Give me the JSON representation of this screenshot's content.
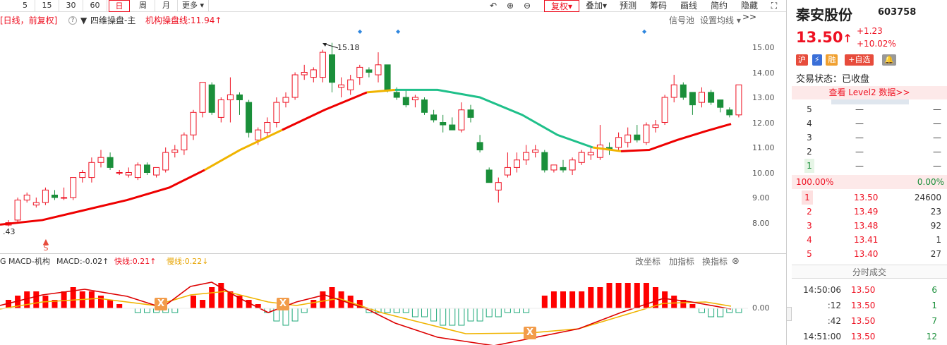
{
  "toolbar": {
    "timeframes": [
      "5",
      "15",
      "30",
      "60",
      "日",
      "周",
      "月",
      "更多"
    ],
    "active": "日",
    "icons": [
      "undo-icon",
      "zoom-in-icon",
      "zoom-out-icon"
    ],
    "buttons": [
      "复权",
      "叠加",
      "预测",
      "筹码",
      "画线",
      "简约",
      "隐藏>>"
    ]
  },
  "info": {
    "mode": "[日线，前复权]",
    "help": "?",
    "indicator": "四维操盘-主",
    "line_label": "机构操盘线:11.94",
    "arrow": "↑",
    "signal_pool": "信号池",
    "set_ma": "设置均线"
  },
  "price_axis": [
    "15.00",
    "14.00",
    "13.00",
    "12.00",
    "11.00",
    "10.00",
    "9.00",
    "8.00"
  ],
  "annotations": {
    "high": "15.18",
    "low": ".43",
    "sell_mark": "S"
  },
  "macd": {
    "prefix": "G MACD-机构",
    "macd": "MACD:-0.02↑",
    "fast": "快线:0.21↑",
    "slow": "慢线:0.22↓",
    "buttons": [
      "改坐标",
      "加指标",
      "换指标"
    ],
    "zero": "0.00",
    "cross": "X"
  },
  "quote": {
    "name": "秦安股份",
    "code": "603758",
    "price": "13.50",
    "arrow": "↑",
    "change": "+1.23",
    "pct": "+10.02%",
    "tags": [
      "沪",
      "融",
      "+自选"
    ],
    "status": "交易状态：已收盘",
    "level2": "查看 Level2 数据>>"
  },
  "asks": [
    {
      "level": "5",
      "price": "—",
      "vol": "—"
    },
    {
      "level": "4",
      "price": "—",
      "vol": "—"
    },
    {
      "level": "3",
      "price": "—",
      "vol": "—"
    },
    {
      "level": "2",
      "price": "—",
      "vol": "—"
    },
    {
      "level": "1",
      "price": "—",
      "vol": "—"
    }
  ],
  "ratio": {
    "buy": "100.00%",
    "sell": "0.00%"
  },
  "bids": [
    {
      "level": "1",
      "price": "13.50",
      "vol": "24600"
    },
    {
      "level": "2",
      "price": "13.49",
      "vol": "23"
    },
    {
      "level": "3",
      "price": "13.48",
      "vol": "92"
    },
    {
      "level": "4",
      "price": "13.41",
      "vol": "1"
    },
    {
      "level": "5",
      "price": "13.40",
      "vol": "27"
    }
  ],
  "ticks_title": "分时成交",
  "ticks": [
    {
      "time": "14:50:06",
      "price": "13.50",
      "vol": "6"
    },
    {
      "time": ":12",
      "price": "13.50",
      "vol": "1"
    },
    {
      "time": ":42",
      "price": "13.50",
      "vol": "7"
    },
    {
      "time": "14:51:00",
      "price": "13.50",
      "vol": "12"
    }
  ],
  "colors": {
    "up": "#e12",
    "down": "#1a8f3a",
    "ma_red": "#e00",
    "ma_green": "#1fc08a",
    "ma_yellow": "#f0b400"
  }
}
